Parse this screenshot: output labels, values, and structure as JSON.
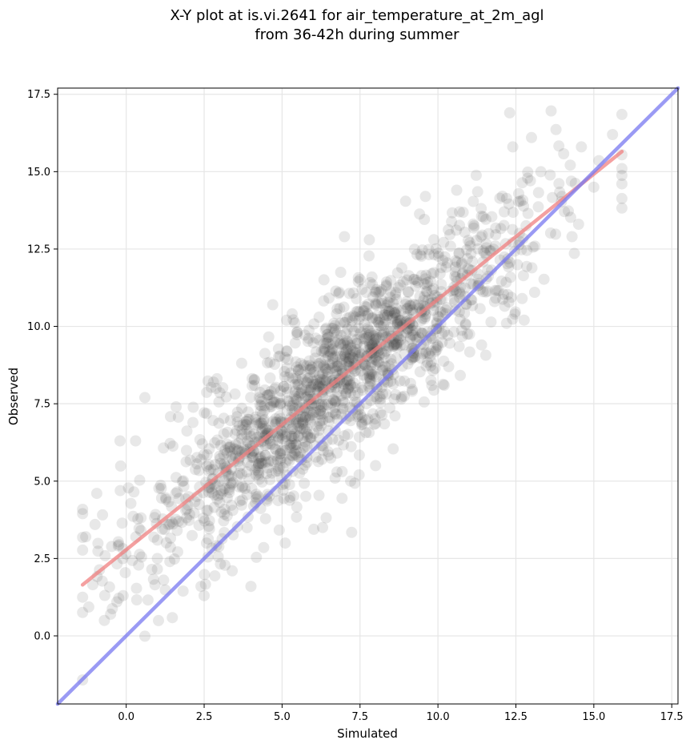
{
  "chart_data": {
    "type": "scatter",
    "title_line1": "X-Y plot at is.vi.2641 for air_temperature_at_2m_agl",
    "title_line2": "from 36-42h during summer",
    "xlabel": "Simulated",
    "ylabel": "Observed",
    "xlim": [
      -2.2,
      17.7
    ],
    "ylim": [
      -2.2,
      17.7
    ],
    "xticks": [
      "0.0",
      "2.5",
      "5.0",
      "7.5",
      "10.0",
      "12.5",
      "15.0",
      "17.5"
    ],
    "yticks": [
      "0.0",
      "2.5",
      "5.0",
      "7.5",
      "10.0",
      "12.5",
      "15.0",
      "17.5"
    ],
    "grid": true,
    "point_color": "#444444",
    "point_alpha": 0.12,
    "fit_line": {
      "color": "#f08080",
      "x": [
        -1.4,
        15.9
      ],
      "y": [
        1.65,
        15.65
      ]
    },
    "identity_line": {
      "color": "#7878f0",
      "x": [
        -2.2,
        17.7
      ],
      "y": [
        -2.2,
        17.7
      ]
    },
    "points_sample": [
      {
        "x": -1.3,
        "y": 3.2
      },
      {
        "x": -1.0,
        "y": 3.6
      },
      {
        "x": -0.7,
        "y": 0.5
      },
      {
        "x": -0.5,
        "y": 0.7
      },
      {
        "x": -0.3,
        "y": 1.1
      },
      {
        "x": -0.1,
        "y": 1.3
      },
      {
        "x": -0.2,
        "y": 6.3
      },
      {
        "x": 0.3,
        "y": 6.3
      },
      {
        "x": 0.6,
        "y": 7.7
      },
      {
        "x": 1.0,
        "y": 2.5
      },
      {
        "x": 1.2,
        "y": 1.8
      },
      {
        "x": 1.4,
        "y": 2.4
      },
      {
        "x": 2.5,
        "y": 1.3
      },
      {
        "x": 2.4,
        "y": 1.6
      },
      {
        "x": 4.0,
        "y": 1.6
      },
      {
        "x": 3.4,
        "y": 2.1
      },
      {
        "x": 5.1,
        "y": 3.0
      },
      {
        "x": 6.3,
        "y": 3.5
      },
      {
        "x": 7.2,
        "y": 5.0
      },
      {
        "x": 8.0,
        "y": 5.5
      },
      {
        "x": 10.2,
        "y": 8.1
      },
      {
        "x": 11.4,
        "y": 9.4
      },
      {
        "x": 12.2,
        "y": 10.1
      },
      {
        "x": 12.4,
        "y": 15.8
      },
      {
        "x": 12.3,
        "y": 16.9
      },
      {
        "x": 13.0,
        "y": 16.1
      },
      {
        "x": 14.6,
        "y": 15.8
      },
      {
        "x": 15.6,
        "y": 16.2
      },
      {
        "x": 15.9,
        "y": 15.1
      },
      {
        "x": 15.0,
        "y": 14.5
      },
      {
        "x": 14.3,
        "y": 12.9
      },
      {
        "x": 13.1,
        "y": 11.1
      },
      {
        "x": 12.7,
        "y": 10.9
      },
      {
        "x": 4.7,
        "y": 10.7
      },
      {
        "x": 7.0,
        "y": 12.9
      },
      {
        "x": 7.8,
        "y": 12.8
      },
      {
        "x": 9.6,
        "y": 14.2
      },
      {
        "x": 10.6,
        "y": 14.4
      },
      {
        "x": 2.8,
        "y": 8.2
      },
      {
        "x": 1.6,
        "y": 7.4
      },
      {
        "x": 5.0,
        "y": 6.5
      },
      {
        "x": 6.5,
        "y": 8.0
      },
      {
        "x": 7.5,
        "y": 9.0
      },
      {
        "x": 8.5,
        "y": 10.5
      },
      {
        "x": 9.0,
        "y": 11.5
      },
      {
        "x": 4.0,
        "y": 5.5
      },
      {
        "x": 3.0,
        "y": 5.0
      },
      {
        "x": 2.0,
        "y": 4.5
      }
    ]
  }
}
